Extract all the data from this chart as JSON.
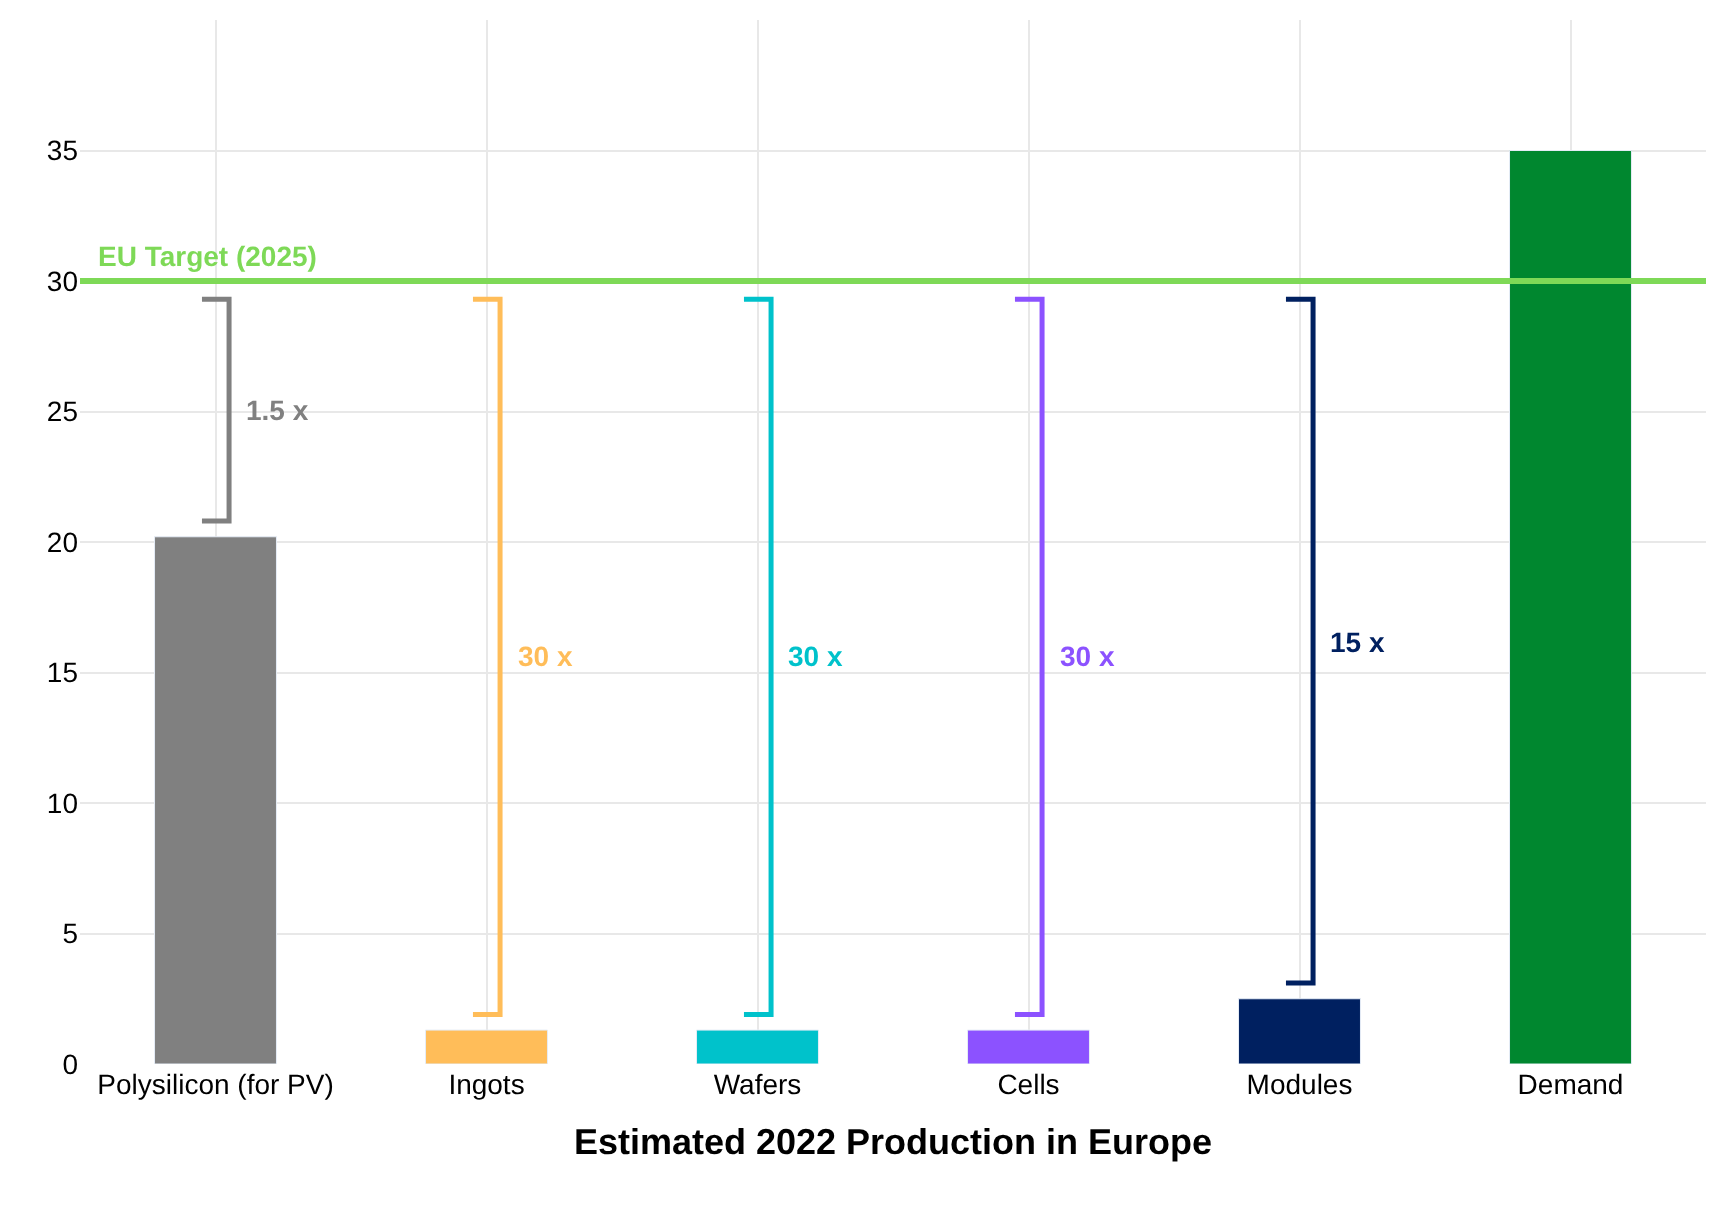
{
  "chart_data": {
    "type": "bar",
    "xlabel": "Estimated 2022 Production in Europe",
    "categories": [
      "Polysilicon (for PV)",
      "Ingots",
      "Wafers",
      "Cells",
      "Modules",
      "Demand"
    ],
    "values": [
      20.2,
      1.3,
      1.3,
      1.3,
      2.5,
      35
    ],
    "colors": [
      "#808080",
      "#ffbd59",
      "#00c2cb",
      "#8c52ff",
      "#002060",
      "#00872f"
    ],
    "ylim": [
      0,
      40
    ],
    "yticks": [
      0,
      5,
      10,
      15,
      20,
      25,
      30,
      35
    ],
    "grid": true,
    "ref_lines": [
      {
        "axis": "y",
        "value": 30,
        "label": "EU Target (2025)",
        "color": "#7ed957"
      }
    ],
    "annotations": [
      "1.5 x",
      "30 x",
      "30 x",
      "30 x",
      "15 x"
    ]
  }
}
